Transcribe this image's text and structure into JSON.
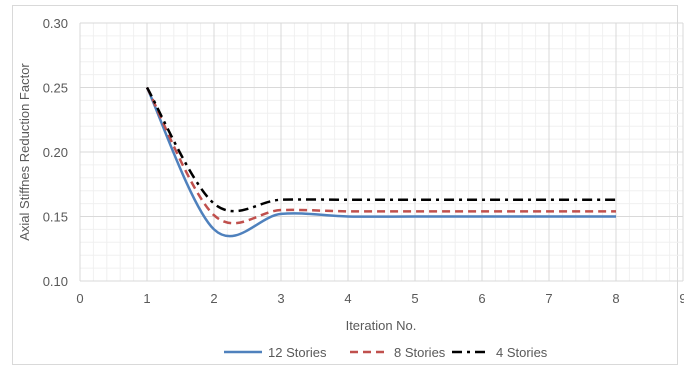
{
  "chart_data": {
    "type": "line",
    "title": "",
    "xlabel": "Iteration No.",
    "ylabel": "Axial Stiffnes Reduction Factor",
    "xlim": [
      0,
      9
    ],
    "ylim": [
      0.1,
      0.3
    ],
    "x_ticks": [
      "0",
      "1",
      "2",
      "3",
      "4",
      "5",
      "6",
      "7",
      "8",
      "9"
    ],
    "y_ticks": [
      "0.10",
      "0.15",
      "0.20",
      "0.25",
      "0.30"
    ],
    "grid": true,
    "legend_position": "bottom",
    "series": [
      {
        "name": "12 Stories",
        "color": "#4f81bd",
        "dash": "solid",
        "x": [
          1,
          2,
          3,
          4,
          5,
          6,
          7,
          8
        ],
        "y": [
          0.25,
          0.14,
          0.152,
          0.15,
          0.15,
          0.15,
          0.15,
          0.15
        ]
      },
      {
        "name": "8 Stories",
        "color": "#c0504d",
        "dash": "dash",
        "x": [
          1,
          2,
          3,
          4,
          5,
          6,
          7,
          8
        ],
        "y": [
          0.25,
          0.151,
          0.155,
          0.154,
          0.154,
          0.154,
          0.154,
          0.154
        ]
      },
      {
        "name": "4 Stories",
        "color": "#000000",
        "dash": "dashdot",
        "x": [
          1,
          2,
          3,
          4,
          5,
          6,
          7,
          8
        ],
        "y": [
          0.25,
          0.16,
          0.163,
          0.163,
          0.163,
          0.163,
          0.163,
          0.163
        ]
      }
    ]
  }
}
